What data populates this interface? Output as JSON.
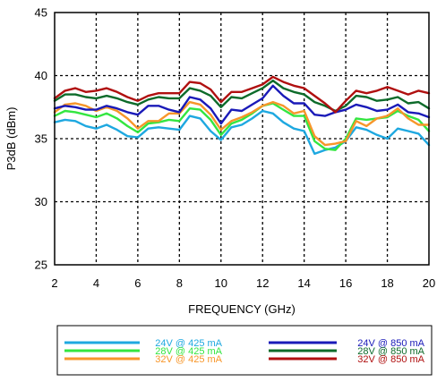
{
  "chart_data": {
    "type": "line",
    "title": "",
    "xlabel": "FREQUENCY (GHz)",
    "ylabel": "P3dB (dBm)",
    "xlim": [
      2,
      20
    ],
    "ylim": [
      25,
      45
    ],
    "x_ticks": [
      2,
      4,
      6,
      8,
      10,
      12,
      14,
      16,
      18,
      20
    ],
    "y_ticks": [
      25,
      30,
      35,
      40,
      45
    ],
    "grid": "dotted",
    "legend_position": "bottom",
    "series": [
      {
        "name": "24V @ 425 mA",
        "color": "#1ea8e0",
        "x": [
          2,
          2.5,
          3,
          3.5,
          4,
          4.5,
          5,
          5.5,
          6,
          6.5,
          7,
          7.5,
          8,
          8.5,
          9,
          9.5,
          10,
          10.5,
          11,
          11.5,
          12,
          12.5,
          13,
          13.5,
          14,
          14.5,
          15,
          15.5,
          16,
          16.5,
          17,
          17.5,
          18,
          18.5,
          19,
          19.5,
          20
        ],
        "y": [
          36.3,
          36.5,
          36.4,
          36.0,
          35.8,
          36.1,
          35.7,
          35.2,
          35.1,
          35.8,
          35.9,
          35.8,
          35.7,
          36.8,
          36.6,
          35.6,
          34.9,
          35.9,
          36.1,
          36.6,
          37.2,
          37.0,
          36.3,
          35.8,
          35.6,
          33.8,
          34.1,
          34.3,
          34.8,
          35.9,
          35.7,
          35.3,
          35.0,
          35.8,
          35.6,
          35.4,
          34.5
        ]
      },
      {
        "name": "28V @ 425 mA",
        "color": "#33e640",
        "x": [
          2,
          2.5,
          3,
          3.5,
          4,
          4.5,
          5,
          5.5,
          6,
          6.5,
          7,
          7.5,
          8,
          8.5,
          9,
          9.5,
          10,
          10.5,
          11,
          11.5,
          12,
          12.5,
          13,
          13.5,
          14,
          14.5,
          15,
          15.5,
          16,
          16.5,
          17,
          17.5,
          18,
          18.5,
          19,
          19.5,
          20
        ],
        "y": [
          36.8,
          37.2,
          37.1,
          36.9,
          36.7,
          37.0,
          36.6,
          36.0,
          35.5,
          36.2,
          36.3,
          36.5,
          36.4,
          37.4,
          37.3,
          36.5,
          35.3,
          36.2,
          36.5,
          37.0,
          37.6,
          37.8,
          37.3,
          36.8,
          36.8,
          34.8,
          34.2,
          34.1,
          35.0,
          36.6,
          36.5,
          36.6,
          36.7,
          37.2,
          36.8,
          36.5,
          35.6
        ]
      },
      {
        "name": "32V @ 425 mA",
        "color": "#f7962a",
        "x": [
          2,
          2.5,
          3,
          3.5,
          4,
          4.5,
          5,
          5.5,
          6,
          6.5,
          7,
          7.5,
          8,
          8.5,
          9,
          9.5,
          10,
          10.5,
          11,
          11.5,
          12,
          12.5,
          13,
          13.5,
          14,
          14.5,
          15,
          15.5,
          16,
          16.5,
          17,
          17.5,
          18,
          18.5,
          19,
          19.5,
          20
        ],
        "y": [
          37.1,
          37.7,
          37.8,
          37.6,
          37.2,
          37.5,
          37.2,
          36.6,
          35.8,
          36.4,
          36.4,
          37.0,
          37.0,
          37.9,
          37.7,
          36.9,
          35.7,
          36.4,
          36.7,
          37.1,
          37.6,
          37.9,
          37.6,
          37.0,
          37.2,
          35.2,
          34.5,
          34.6,
          34.8,
          36.4,
          36.0,
          36.6,
          36.8,
          37.4,
          36.6,
          36.1,
          36.1
        ]
      },
      {
        "name": "24V @ 850 mA",
        "color": "#1a1ab8",
        "x": [
          2,
          2.5,
          3,
          3.5,
          4,
          4.5,
          5,
          5.5,
          6,
          6.5,
          7,
          7.5,
          8,
          8.5,
          9,
          9.5,
          10,
          10.5,
          11,
          11.5,
          12,
          12.5,
          13,
          13.5,
          14,
          14.5,
          15,
          15.5,
          16,
          16.5,
          17,
          17.5,
          18,
          18.5,
          19,
          19.5,
          20
        ],
        "y": [
          37.4,
          37.6,
          37.5,
          37.3,
          37.3,
          37.6,
          37.4,
          37.1,
          36.9,
          37.6,
          37.6,
          37.3,
          37.1,
          38.3,
          38.1,
          37.4,
          36.2,
          37.3,
          37.2,
          37.7,
          38.2,
          39.2,
          38.4,
          37.8,
          37.8,
          36.9,
          36.8,
          37.1,
          37.3,
          37.7,
          37.5,
          37.2,
          37.3,
          37.7,
          37.1,
          37.0,
          36.7
        ]
      },
      {
        "name": "28V @ 850 mA",
        "color": "#0d6b2a",
        "x": [
          2,
          2.5,
          3,
          3.5,
          4,
          4.5,
          5,
          5.5,
          6,
          6.5,
          7,
          7.5,
          8,
          8.5,
          9,
          9.5,
          10,
          10.5,
          11,
          11.5,
          12,
          12.5,
          13,
          13.5,
          14,
          14.5,
          15,
          15.5,
          16,
          16.5,
          17,
          17.5,
          18,
          18.5,
          19,
          19.5,
          20
        ],
        "y": [
          38.0,
          38.5,
          38.5,
          38.3,
          38.2,
          38.4,
          38.2,
          37.9,
          37.7,
          38.1,
          38.3,
          38.2,
          38.2,
          39.0,
          38.8,
          38.4,
          37.5,
          38.3,
          38.2,
          38.6,
          39.0,
          39.6,
          39.0,
          38.7,
          38.5,
          37.9,
          37.6,
          37.2,
          37.6,
          38.4,
          38.3,
          38.0,
          38.1,
          38.3,
          37.8,
          37.9,
          37.4
        ]
      },
      {
        "name": "32V @ 850 mA",
        "color": "#b01010",
        "x": [
          2,
          2.5,
          3,
          3.5,
          4,
          4.5,
          5,
          5.5,
          6,
          6.5,
          7,
          7.5,
          8,
          8.5,
          9,
          9.5,
          10,
          10.5,
          11,
          11.5,
          12,
          12.5,
          13,
          13.5,
          14,
          14.5,
          15,
          15.5,
          16,
          16.5,
          17,
          17.5,
          18,
          18.5,
          19,
          19.5,
          20
        ],
        "y": [
          38.2,
          38.8,
          39.0,
          38.7,
          38.8,
          39.0,
          38.7,
          38.3,
          38.0,
          38.4,
          38.6,
          38.6,
          38.6,
          39.5,
          39.4,
          38.9,
          37.9,
          38.7,
          38.7,
          39.0,
          39.3,
          39.9,
          39.5,
          39.2,
          39.0,
          38.4,
          37.8,
          37.1,
          38.0,
          38.8,
          38.6,
          38.8,
          39.1,
          38.8,
          38.5,
          38.8,
          38.6
        ]
      }
    ]
  }
}
